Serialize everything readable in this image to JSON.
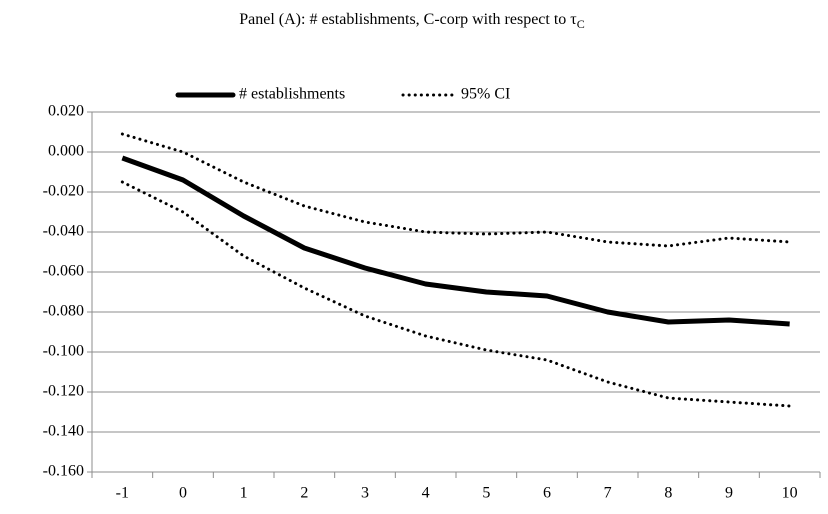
{
  "chart_data": {
    "type": "line",
    "title": "Panel (A): # establishments, C-corp with respect to τ",
    "title_subscript": "C",
    "categories": [
      "-1",
      "0",
      "1",
      "2",
      "3",
      "4",
      "5",
      "6",
      "7",
      "8",
      "9",
      "10"
    ],
    "series": [
      {
        "name": "# establishments",
        "color": "#000000",
        "style": "solid",
        "values": [
          -0.003,
          -0.014,
          -0.032,
          -0.048,
          -0.058,
          -0.066,
          -0.07,
          -0.072,
          -0.08,
          -0.085,
          -0.084,
          -0.086
        ]
      },
      {
        "name": "95% CI",
        "color": "#000000",
        "style": "dotted",
        "values": [
          0.009,
          0.0,
          -0.015,
          -0.027,
          -0.035,
          -0.04,
          -0.041,
          -0.04,
          -0.045,
          -0.047,
          -0.043,
          -0.045
        ]
      },
      {
        "name": "95% CI",
        "color": "#000000",
        "style": "dotted",
        "values": [
          -0.015,
          -0.03,
          -0.052,
          -0.068,
          -0.082,
          -0.092,
          -0.099,
          -0.104,
          -0.115,
          -0.123,
          -0.125,
          -0.127
        ]
      }
    ],
    "ylim": [
      -0.16,
      0.02
    ],
    "yticks": [
      {
        "value": 0.02,
        "label": "0.020"
      },
      {
        "value": 0,
        "label": "0.000"
      },
      {
        "value": -0.02,
        "label": "-0.020"
      },
      {
        "value": -0.04,
        "label": "-0.040"
      },
      {
        "value": -0.06,
        "label": "-0.060"
      },
      {
        "value": -0.08,
        "label": "-0.080"
      },
      {
        "value": -0.1,
        "label": "-0.100"
      },
      {
        "value": -0.12,
        "label": "-0.120"
      },
      {
        "value": -0.14,
        "label": "-0.140"
      },
      {
        "value": -0.16,
        "label": "-0.160"
      }
    ],
    "grid": true,
    "legend": "top"
  }
}
